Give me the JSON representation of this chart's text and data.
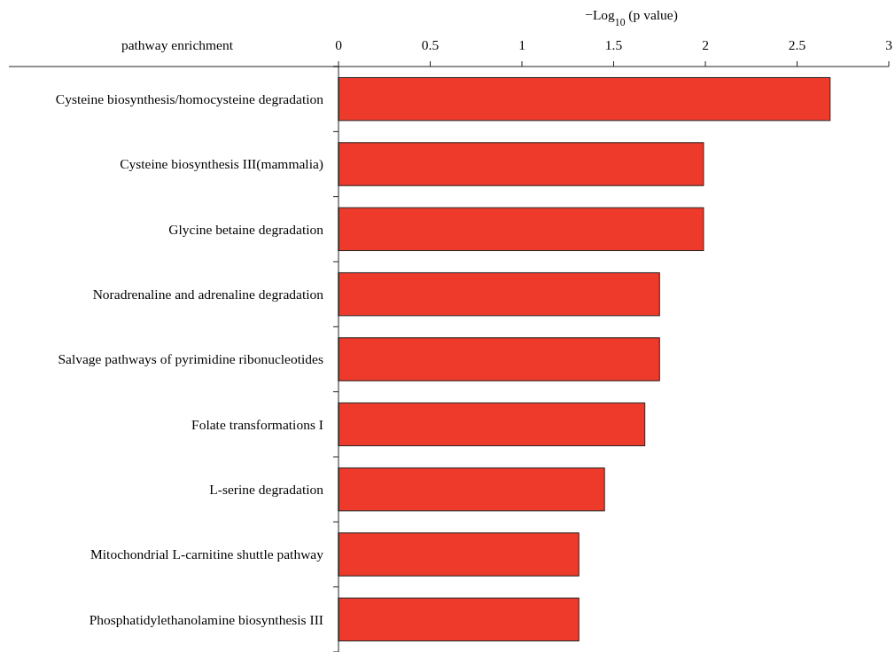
{
  "chart_data": {
    "type": "bar",
    "orientation": "horizontal",
    "xlabel": "−Log$_{10}$ (p value)",
    "ylabel": "pathway enrichment",
    "categories": [
      "Cysteine biosynthesis/homocysteine degradation",
      "Cysteine biosynthesis III(mammalia)",
      "Glycine betaine degradation",
      "Noradrenaline and adrenaline degradation",
      "Salvage pathways of pyrimidine ribonucleotides",
      "Folate transformations I",
      "L-serine degradation",
      "Mitochondrial L-carnitine shuttle pathway",
      "Phosphatidylethanolamine biosynthesis III"
    ],
    "values": [
      2.68,
      1.99,
      1.99,
      1.75,
      1.75,
      1.67,
      1.45,
      1.31,
      1.31
    ],
    "color": "#ee3a2a",
    "xlim": [
      0,
      3
    ],
    "xticks": [
      0,
      0.5,
      1,
      1.5,
      2,
      2.5,
      3
    ]
  }
}
